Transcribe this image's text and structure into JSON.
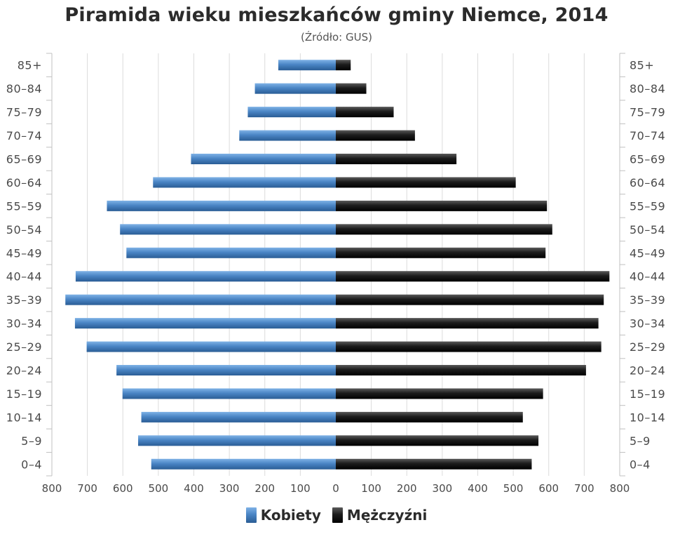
{
  "chart_data": {
    "type": "bar",
    "title": "Piramida wieku mieszkańców gminy Niemce, 2014",
    "subtitle": "(Źródło: GUS)",
    "categories": [
      "85+",
      "80–84",
      "75–79",
      "70–74",
      "65–69",
      "60–64",
      "55–59",
      "50–54",
      "45–49",
      "40–44",
      "35–39",
      "30–34",
      "25–29",
      "20–24",
      "15–19",
      "10–14",
      "5–9",
      "0–4"
    ],
    "series": [
      {
        "name": "Kobiety",
        "color": "#4a85c5",
        "values": [
          162,
          228,
          248,
          272,
          408,
          515,
          645,
          608,
          590,
          733,
          762,
          735,
          702,
          618,
          601,
          548,
          557,
          520
        ]
      },
      {
        "name": "Mężczyźni",
        "color": "#1c1c1c",
        "values": [
          42,
          86,
          163,
          223,
          340,
          507,
          595,
          610,
          591,
          771,
          755,
          740,
          748,
          705,
          584,
          527,
          571,
          552
        ]
      }
    ],
    "xlim": [
      -800,
      800
    ],
    "xticks": [
      "800",
      "700",
      "600",
      "500",
      "400",
      "300",
      "200",
      "100",
      "0",
      "100",
      "200",
      "300",
      "400",
      "500",
      "600",
      "700",
      "800"
    ],
    "grid": true,
    "legend_position": "bottom-center"
  }
}
